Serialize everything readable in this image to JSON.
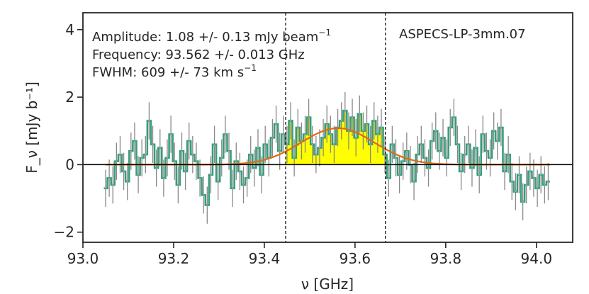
{
  "chart_data": {
    "type": "line",
    "title": "",
    "xlabel": "ν [GHz]",
    "ylabel": "F_ν [mJy b⁻¹]",
    "xlim": [
      93.0,
      94.08
    ],
    "ylim": [
      -2.3,
      4.5
    ],
    "xticks": [
      93.0,
      93.2,
      93.4,
      93.6,
      93.8,
      94.0
    ],
    "xtick_labels": [
      "93.0",
      "93.2",
      "93.4",
      "93.6",
      "93.8",
      "94.0"
    ],
    "yticks": [
      -2,
      0,
      2,
      4
    ],
    "ytick_labels": [
      "−2",
      "0",
      "2",
      "4"
    ],
    "source_label": "ASPECS-LP-3mm.07",
    "annotations": {
      "amplitude_text": "Amplitude: 1.08 +/- 0.13 mJy beam",
      "amplitude_sup": "−1",
      "frequency_text": "Frequency: 93.562 +/- 0.013 GHz",
      "fwhm_text": "FWHM: 609 +/- 73 km s",
      "fwhm_sup": "−1"
    },
    "line_window": [
      93.447,
      93.667
    ],
    "gaussian_fit": {
      "name": "Gaussian fit",
      "amplitude": 1.08,
      "center": 93.562,
      "fwhm_kms": 609,
      "x_range": [
        93.05,
        94.03
      ],
      "color": "#e06a14"
    },
    "spectrum": {
      "name": "Spectrum",
      "color": "#3a9b7d",
      "fill_color": "#ffff00",
      "errorbar_color": "#888888",
      "channel_width": 0.0078,
      "x": [
        93.05,
        93.058,
        93.066,
        93.074,
        93.082,
        93.09,
        93.098,
        93.106,
        93.114,
        93.122,
        93.13,
        93.138,
        93.146,
        93.154,
        93.162,
        93.17,
        93.178,
        93.186,
        93.194,
        93.202,
        93.21,
        93.218,
        93.226,
        93.234,
        93.242,
        93.25,
        93.258,
        93.266,
        93.274,
        93.282,
        93.29,
        93.298,
        93.306,
        93.314,
        93.322,
        93.33,
        93.338,
        93.346,
        93.354,
        93.362,
        93.37,
        93.378,
        93.386,
        93.394,
        93.402,
        93.41,
        93.418,
        93.426,
        93.434,
        93.442,
        93.45,
        93.458,
        93.466,
        93.474,
        93.482,
        93.49,
        93.498,
        93.506,
        93.514,
        93.522,
        93.53,
        93.538,
        93.546,
        93.554,
        93.562,
        93.57,
        93.578,
        93.586,
        93.594,
        93.602,
        93.61,
        93.618,
        93.626,
        93.634,
        93.642,
        93.65,
        93.658,
        93.666,
        93.674,
        93.682,
        93.69,
        93.698,
        93.706,
        93.714,
        93.722,
        93.73,
        93.738,
        93.746,
        93.754,
        93.762,
        93.77,
        93.778,
        93.786,
        93.794,
        93.802,
        93.81,
        93.818,
        93.826,
        93.834,
        93.842,
        93.85,
        93.858,
        93.866,
        93.874,
        93.882,
        93.89,
        93.898,
        93.906,
        93.914,
        93.922,
        93.93,
        93.938,
        93.946,
        93.954,
        93.962,
        93.97,
        93.978,
        93.986,
        93.994,
        94.002,
        94.01,
        94.018,
        94.026
      ],
      "y": [
        -0.7,
        -0.4,
        -0.6,
        0.1,
        0.3,
        -0.2,
        -0.5,
        0.4,
        0.7,
        -0.3,
        0.2,
        0.3,
        1.3,
        0.6,
        -0.1,
        0.5,
        -0.4,
        0.2,
        0.9,
        0.1,
        -0.6,
        0.4,
        -0.2,
        0.7,
        0.3,
        0.1,
        -0.4,
        -0.9,
        -1.2,
        -0.3,
        0.6,
        -0.5,
        0.2,
        0.9,
        0.4,
        -0.7,
        0.1,
        -0.2,
        -0.6,
        -0.4,
        0.3,
        -0.1,
        0.5,
        -0.3,
        0.6,
        0.2,
        0.8,
        1.2,
        0.4,
        0.9,
        0.6,
        1.3,
        0.2,
        1.1,
        0.7,
        0.9,
        1.4,
        0.6,
        0.3,
        0.5,
        0.8,
        1.2,
        0.9,
        0.6,
        1.1,
        1.3,
        1.6,
        1.0,
        1.4,
        0.8,
        1.5,
        1.0,
        1.2,
        0.6,
        1.3,
        0.9,
        1.1,
        0.3,
        -0.4,
        0.6,
        0.2,
        -0.3,
        0.1,
        0.4,
        0.0,
        -0.5,
        0.3,
        0.6,
        0.2,
        -0.1,
        0.7,
        1.0,
        0.4,
        0.8,
        0.2,
        1.1,
        1.4,
        0.6,
        -0.2,
        0.3,
        0.6,
        -0.1,
        0.5,
        -0.3,
        0.9,
        0.4,
        0.2,
        1.0,
        0.7,
        1.1,
        -0.2,
        0.3,
        -0.5,
        -0.8,
        -0.3,
        -1.1,
        -0.6,
        -0.2,
        -0.4,
        -0.7,
        -0.3,
        -0.6,
        -0.5
      ],
      "yerr": 0.55
    }
  }
}
